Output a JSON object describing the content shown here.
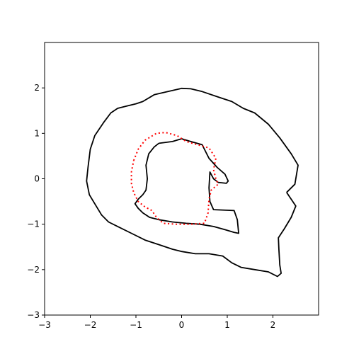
{
  "chart_data": {
    "type": "line",
    "title": "",
    "xlabel": "",
    "ylabel": "",
    "xlim": [
      -3,
      3
    ],
    "ylim": [
      -3,
      3
    ],
    "grid": false,
    "x_ticks": [
      -3,
      -2,
      -1,
      0,
      1,
      2
    ],
    "y_ticks": [
      -3,
      -2,
      -1,
      0,
      1,
      2
    ],
    "series": [
      {
        "style": "solid",
        "color": "#000000",
        "points": [
          [
            2.3,
            -0.3
          ],
          [
            2.48,
            -0.12
          ],
          [
            2.55,
            0.3
          ],
          [
            2.4,
            0.55
          ],
          [
            2.15,
            0.9
          ],
          [
            1.9,
            1.2
          ],
          [
            1.6,
            1.45
          ],
          [
            1.35,
            1.55
          ],
          [
            1.1,
            1.7
          ],
          [
            0.8,
            1.8
          ],
          [
            0.45,
            1.92
          ],
          [
            0.2,
            1.98
          ],
          [
            0.0,
            1.99
          ],
          [
            -0.3,
            1.92
          ],
          [
            -0.6,
            1.85
          ],
          [
            -0.85,
            1.7
          ],
          [
            -1.0,
            1.65
          ],
          [
            -1.2,
            1.6
          ],
          [
            -1.4,
            1.55
          ],
          [
            -1.55,
            1.45
          ],
          [
            -1.7,
            1.25
          ],
          [
            -1.9,
            0.95
          ],
          [
            -2.0,
            0.65
          ],
          [
            -2.05,
            0.25
          ],
          [
            -2.08,
            -0.05
          ],
          [
            -2.02,
            -0.35
          ],
          [
            -1.9,
            -0.55
          ],
          [
            -1.75,
            -0.8
          ],
          [
            -1.6,
            -0.95
          ],
          [
            -1.4,
            -1.05
          ],
          [
            -1.1,
            -1.2
          ],
          [
            -0.8,
            -1.35
          ],
          [
            -0.5,
            -1.45
          ],
          [
            -0.2,
            -1.55
          ],
          [
            0.0,
            -1.6
          ],
          [
            0.3,
            -1.65
          ],
          [
            0.6,
            -1.65
          ],
          [
            0.9,
            -1.7
          ],
          [
            1.1,
            -1.85
          ],
          [
            1.3,
            -1.95
          ],
          [
            1.6,
            -2.0
          ],
          [
            1.9,
            -2.05
          ],
          [
            2.1,
            -2.15
          ],
          [
            2.18,
            -2.08
          ],
          [
            2.15,
            -1.9
          ],
          [
            2.13,
            -1.55
          ],
          [
            2.12,
            -1.3
          ],
          [
            2.25,
            -1.1
          ],
          [
            2.4,
            -0.85
          ],
          [
            2.5,
            -0.6
          ],
          [
            2.3,
            -0.3
          ]
        ]
      },
      {
        "style": "solid",
        "color": "#000000",
        "points": [
          [
            -0.5,
            0.78
          ],
          [
            -0.2,
            0.82
          ],
          [
            0.0,
            0.88
          ],
          [
            0.2,
            0.82
          ],
          [
            0.45,
            0.75
          ],
          [
            0.6,
            0.45
          ],
          [
            0.78,
            0.25
          ],
          [
            0.95,
            0.1
          ],
          [
            1.02,
            -0.05
          ],
          [
            0.98,
            -0.1
          ],
          [
            0.8,
            -0.08
          ],
          [
            0.7,
            0.0
          ],
          [
            0.62,
            0.15
          ],
          [
            0.6,
            -0.2
          ],
          [
            0.62,
            -0.5
          ],
          [
            0.7,
            -0.68
          ],
          [
            1.15,
            -0.7
          ],
          [
            1.22,
            -0.9
          ],
          [
            1.25,
            -1.2
          ],
          [
            1.15,
            -1.18
          ],
          [
            0.95,
            -1.12
          ],
          [
            0.7,
            -1.05
          ],
          [
            0.4,
            -1.0
          ],
          [
            0.1,
            -0.98
          ],
          [
            -0.2,
            -0.95
          ],
          [
            -0.5,
            -0.9
          ],
          [
            -0.7,
            -0.85
          ],
          [
            -0.85,
            -0.75
          ],
          [
            -0.95,
            -0.65
          ],
          [
            -1.02,
            -0.55
          ],
          [
            -0.95,
            -0.45
          ],
          [
            -0.85,
            -0.35
          ],
          [
            -0.78,
            -0.25
          ],
          [
            -0.75,
            0.0
          ],
          [
            -0.78,
            0.3
          ],
          [
            -0.72,
            0.55
          ],
          [
            -0.6,
            0.7
          ],
          [
            -0.5,
            0.78
          ]
        ]
      },
      {
        "style": "dotted",
        "color": "#ff0000",
        "points": [
          [
            -1.05,
            0.4
          ],
          [
            -0.95,
            0.65
          ],
          [
            -0.8,
            0.85
          ],
          [
            -0.55,
            1.0
          ],
          [
            -0.35,
            1.02
          ],
          [
            -0.1,
            0.95
          ],
          [
            0.1,
            0.82
          ],
          [
            0.35,
            0.75
          ],
          [
            0.6,
            0.68
          ],
          [
            0.75,
            0.45
          ],
          [
            0.7,
            0.2
          ],
          [
            0.75,
            0.0
          ],
          [
            0.8,
            -0.12
          ],
          [
            0.65,
            -0.25
          ],
          [
            0.6,
            -0.45
          ],
          [
            0.58,
            -0.75
          ],
          [
            0.5,
            -0.98
          ],
          [
            0.2,
            -1.0
          ],
          [
            -0.1,
            -1.0
          ],
          [
            -0.4,
            -0.98
          ],
          [
            -0.55,
            -0.85
          ],
          [
            -0.65,
            -0.7
          ],
          [
            -0.8,
            -0.62
          ],
          [
            -0.95,
            -0.5
          ],
          [
            -1.05,
            -0.3
          ],
          [
            -1.1,
            -0.1
          ],
          [
            -1.1,
            0.15
          ],
          [
            -1.05,
            0.4
          ]
        ]
      }
    ]
  }
}
